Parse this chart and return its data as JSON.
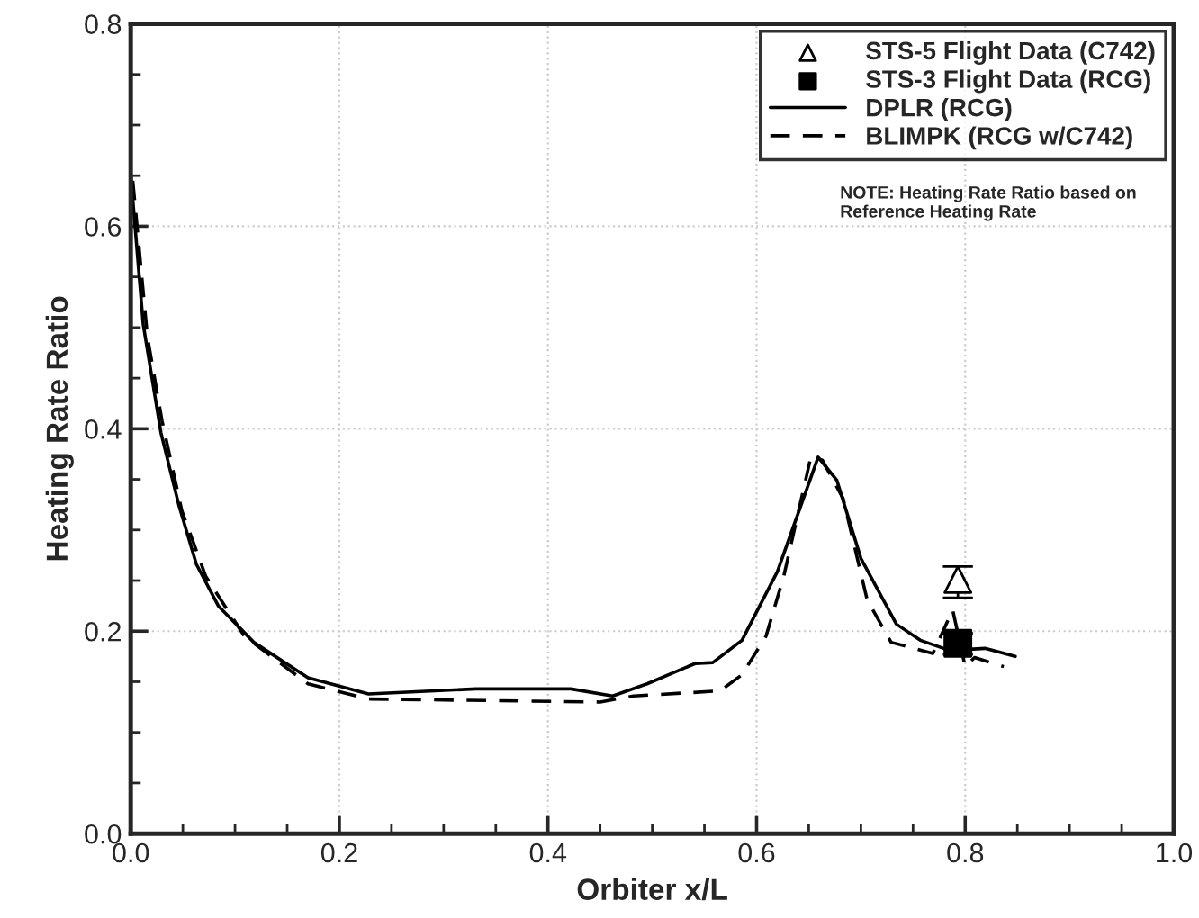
{
  "chart_data": {
    "type": "line",
    "xlabel": "Orbiter x/L",
    "ylabel": "Heating Rate Ratio",
    "xlim": [
      0,
      1
    ],
    "ylim": [
      0,
      0.8
    ],
    "xticks": [
      {
        "value": 0,
        "label": "0.0"
      },
      {
        "value": 0.2,
        "label": "0.2"
      },
      {
        "value": 0.4,
        "label": "0.4"
      },
      {
        "value": 0.6,
        "label": "0.6"
      },
      {
        "value": 0.8,
        "label": "0.8"
      },
      {
        "value": 1,
        "label": "1.0"
      }
    ],
    "yticks": [
      {
        "value": 0,
        "label": "0.0"
      },
      {
        "value": 0.2,
        "label": "0.2"
      },
      {
        "value": 0.4,
        "label": "0.4"
      },
      {
        "value": 0.6,
        "label": "0.6"
      },
      {
        "value": 0.8,
        "label": "0.8"
      }
    ],
    "grid": true,
    "legend": "top right",
    "series": [
      {
        "name": "STS-5 Flight Data (C742)",
        "type": "scatter",
        "marker": "triangle",
        "color": "#000000",
        "x": [
          0.793
        ],
        "values": [
          0.251
        ],
        "errors": [
          [
            0.233,
            0.264
          ]
        ]
      },
      {
        "name": "STS-3 Flight Data (RCG)",
        "type": "scatter",
        "marker": "square",
        "color": "#000000",
        "x": [
          0.793
        ],
        "values": [
          0.188
        ],
        "errors": [
          [
            0.177,
            0.198
          ]
        ]
      },
      {
        "name": "DPLR (RCG)",
        "line_style": "solid",
        "color": "#000000",
        "x": [
          0.0,
          0.012,
          0.029,
          0.046,
          0.063,
          0.084,
          0.118,
          0.17,
          0.228,
          0.331,
          0.422,
          0.462,
          0.495,
          0.541,
          0.558,
          0.586,
          0.62,
          0.659,
          0.677,
          0.7,
          0.734,
          0.757,
          0.785,
          0.819,
          0.848
        ],
        "values": [
          0.651,
          0.503,
          0.396,
          0.325,
          0.266,
          0.225,
          0.189,
          0.154,
          0.138,
          0.143,
          0.143,
          0.136,
          0.148,
          0.168,
          0.169,
          0.191,
          0.259,
          0.372,
          0.349,
          0.272,
          0.207,
          0.191,
          0.181,
          0.183,
          0.175
        ]
      },
      {
        "name": "BLIMPK (RCG w/C742)",
        "line_style": "dashed",
        "color": "#000000",
        "x": [
          0.002,
          0.016,
          0.03,
          0.049,
          0.072,
          0.109,
          0.17,
          0.228,
          0.45,
          0.482,
          0.565,
          0.586,
          0.609,
          0.626,
          0.652,
          0.663,
          0.683,
          0.706,
          0.729,
          0.769,
          0.788,
          0.8,
          0.809,
          0.837
        ],
        "values": [
          0.645,
          0.491,
          0.408,
          0.319,
          0.254,
          0.195,
          0.148,
          0.133,
          0.13,
          0.136,
          0.141,
          0.157,
          0.195,
          0.254,
          0.372,
          0.369,
          0.331,
          0.231,
          0.189,
          0.178,
          0.221,
          0.165,
          0.174,
          0.165
        ]
      }
    ],
    "annotations": [
      "NOTE: Heating Rate Ratio based on\nReference Heating Rate"
    ]
  }
}
